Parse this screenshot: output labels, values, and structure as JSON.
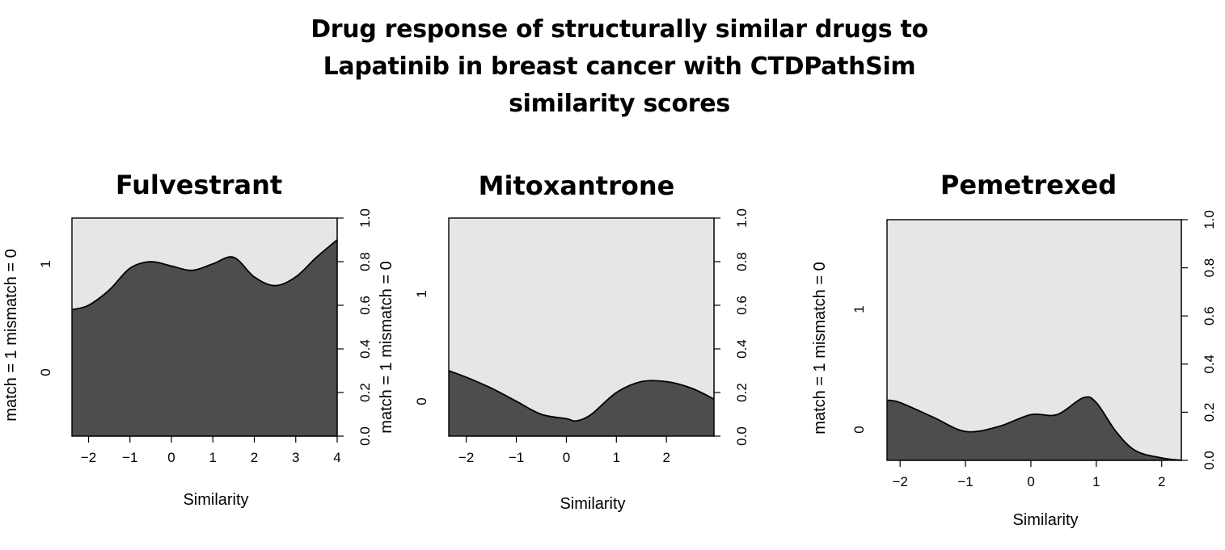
{
  "title_lines": [
    "Drug response of structurally similar drugs to",
    "Lapatinib in breast cancer with CTDPathSim",
    "similarity scores"
  ],
  "chart_data": [
    {
      "type": "area",
      "title": "Fulvestrant",
      "xlabel": "Similarity",
      "ylabel": "match = 1 mismatch = 0",
      "xlim": [
        -2.4,
        4.0
      ],
      "xticks": [
        -2,
        -1,
        0,
        1,
        2,
        3,
        4
      ],
      "left_axis_ticks": [
        0,
        1
      ],
      "right_axis_ticks": [
        "0.0",
        "0.2",
        "0.4",
        "0.6",
        "0.8",
        "1.0"
      ],
      "right_ylabel": "match = 1 mismatch = 0",
      "x": [
        -2.4,
        -2.0,
        -1.5,
        -1.0,
        -0.5,
        0.0,
        0.5,
        1.0,
        1.5,
        2.0,
        2.5,
        3.0,
        3.5,
        4.0
      ],
      "y": [
        0.58,
        0.6,
        0.67,
        0.77,
        0.8,
        0.78,
        0.76,
        0.79,
        0.82,
        0.73,
        0.69,
        0.73,
        0.82,
        0.9
      ]
    },
    {
      "type": "area",
      "title": "Mitoxantrone",
      "xlabel": "Similarity",
      "ylabel": "",
      "xlim": [
        -2.35,
        2.95
      ],
      "xticks": [
        -2,
        -1,
        0,
        1,
        2
      ],
      "left_axis_ticks": [
        0,
        1
      ],
      "right_axis_ticks": [
        "0.0",
        "0.2",
        "0.4",
        "0.6",
        "0.8",
        "1.0"
      ],
      "right_ylabel": "",
      "x": [
        -2.35,
        -2.0,
        -1.5,
        -1.0,
        -0.5,
        0.0,
        0.2,
        0.5,
        1.0,
        1.5,
        2.0,
        2.5,
        2.95
      ],
      "y": [
        0.3,
        0.27,
        0.22,
        0.16,
        0.1,
        0.08,
        0.07,
        0.1,
        0.2,
        0.25,
        0.25,
        0.22,
        0.17
      ]
    },
    {
      "type": "area",
      "title": "Pemetrexed",
      "xlabel": "Similarity",
      "ylabel": "match = 1 mismatch = 0",
      "xlim": [
        -2.2,
        2.3
      ],
      "xticks": [
        -2,
        -1,
        0,
        1,
        2
      ],
      "left_axis_ticks": [
        0,
        1
      ],
      "right_axis_ticks": [
        "0.0",
        "0.2",
        "0.4",
        "0.6",
        "0.8",
        "1.0"
      ],
      "right_ylabel": "",
      "x": [
        -2.2,
        -2.0,
        -1.5,
        -1.0,
        -0.5,
        0.0,
        0.4,
        0.8,
        1.0,
        1.3,
        1.6,
        2.0,
        2.3
      ],
      "y": [
        0.25,
        0.24,
        0.18,
        0.12,
        0.14,
        0.19,
        0.19,
        0.26,
        0.24,
        0.12,
        0.04,
        0.01,
        0.0
      ]
    }
  ]
}
